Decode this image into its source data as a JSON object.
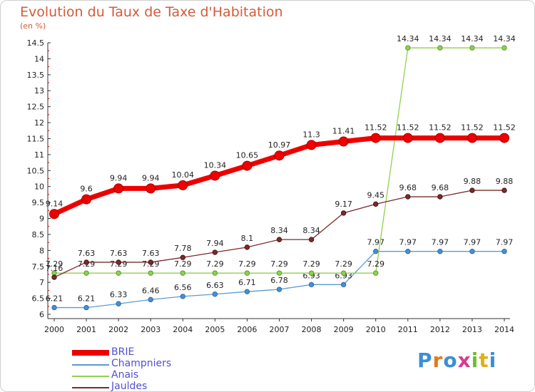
{
  "title": "Evolution du Taux de Taxe d'Habitation",
  "subtitle": "(en %)",
  "logo": "Proxiti",
  "chart_data": {
    "type": "line",
    "x": [
      "2000",
      "2001",
      "2002",
      "2003",
      "2004",
      "2005",
      "2006",
      "2007",
      "2008",
      "2009",
      "2010",
      "2011",
      "2012",
      "2013",
      "2014"
    ],
    "yticks": [
      "6",
      "6.5",
      "7",
      "7.5",
      "8",
      "8.5",
      "9",
      "9.5",
      "10",
      "10.5",
      "11",
      "11.5",
      "12",
      "12.5",
      "13",
      "13.5",
      "14",
      "14.5"
    ],
    "ylim": [
      6,
      14.5
    ],
    "grid": false,
    "legend_position": "bottom-left",
    "series": [
      {
        "name": "BRIE",
        "color": "#ee0000",
        "values": [
          9.14,
          9.6,
          9.94,
          9.94,
          10.04,
          10.34,
          10.65,
          10.97,
          11.3,
          11.41,
          11.52,
          11.52,
          11.52,
          11.52,
          11.52
        ]
      },
      {
        "name": "Champniers",
        "color": "#5b9bd5",
        "values": [
          6.21,
          6.21,
          6.33,
          6.46,
          6.56,
          6.63,
          6.71,
          6.78,
          6.93,
          6.93,
          7.97,
          7.97,
          7.97,
          7.97,
          7.97
        ]
      },
      {
        "name": "Anais",
        "color": "#8fd14f",
        "values": [
          7.29,
          7.29,
          7.29,
          7.29,
          7.29,
          7.29,
          7.29,
          7.29,
          7.29,
          7.29,
          7.29,
          14.34,
          14.34,
          14.34,
          14.34
        ]
      },
      {
        "name": "Jauldes",
        "color": "#7a2b2b",
        "values": [
          7.16,
          7.63,
          7.63,
          7.63,
          7.78,
          7.94,
          8.1,
          8.34,
          8.34,
          9.17,
          9.45,
          9.68,
          9.68,
          9.88,
          9.88
        ]
      }
    ],
    "labels": {
      "BRIE": [
        "9.14",
        "9.6",
        "9.94",
        "9.94",
        "10.04",
        "10.34",
        "10.65",
        "10.97",
        "11.3",
        "11.41",
        "11.52",
        "11.52",
        "11.52",
        "11.52",
        "11.52"
      ],
      "Champniers": [
        "6.21",
        "6.21",
        "6.33",
        "6.46",
        "6.56",
        "6.63",
        "6.71",
        "6.78",
        "6.93",
        "6.93",
        "7.97",
        "7.97",
        "7.97",
        "7.97",
        "7.97"
      ],
      "Anais": [
        "7.29",
        "7.29",
        "7.29",
        "7.29",
        "7.29",
        "7.29",
        "7.29",
        "7.29",
        "7.29",
        "7.29",
        "7.29",
        "14.34",
        "14.34",
        "14.34",
        "14.34"
      ],
      "Jauldes": [
        "7.16",
        "7.63",
        "7.63",
        "7.63",
        "7.78",
        "7.94",
        "8.1",
        "8.34",
        "8.34",
        "9.17",
        "9.45",
        "9.68",
        "9.68",
        "9.88",
        "9.88"
      ]
    }
  }
}
